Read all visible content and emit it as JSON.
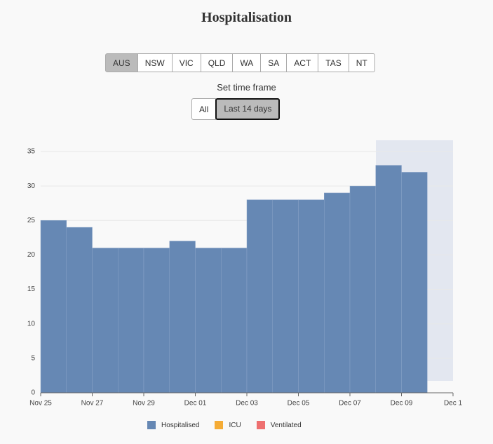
{
  "chart_data": {
    "type": "bar",
    "title": "Hospitalisation",
    "regions": [
      "AUS",
      "NSW",
      "VIC",
      "QLD",
      "WA",
      "SA",
      "ACT",
      "TAS",
      "NT"
    ],
    "selected_region": "AUS",
    "time_frame_label": "Set time frame",
    "time_frames": [
      "All",
      "Last 14 days"
    ],
    "selected_time_frame": "Last 14 days",
    "x": [
      0,
      1,
      2,
      3,
      4,
      5,
      6,
      7,
      8,
      9,
      10,
      11,
      12,
      13,
      14
    ],
    "xlim": [
      0,
      16
    ],
    "xticks": [
      {
        "value": 0,
        "label": "Nov 25"
      },
      {
        "value": 2,
        "label": "Nov 27"
      },
      {
        "value": 4,
        "label": "Nov 29"
      },
      {
        "value": 6,
        "label": "Dec 01"
      },
      {
        "value": 8,
        "label": "Dec 03"
      },
      {
        "value": 10,
        "label": "Dec 05"
      },
      {
        "value": 12,
        "label": "Dec 07"
      },
      {
        "value": 14,
        "label": "Dec 09"
      },
      {
        "value": 16,
        "label": "Dec 1"
      }
    ],
    "series": [
      {
        "name": "Hospitalised",
        "color": "#6688b4",
        "values": [
          25,
          24,
          21,
          21,
          21,
          22,
          21,
          21,
          28,
          28,
          28,
          29,
          30,
          33,
          32
        ]
      }
    ],
    "legend": [
      {
        "name": "Hospitalised",
        "color": "#6688b4"
      },
      {
        "name": "ICU",
        "color": "#f5ac36"
      },
      {
        "name": "Ventilated",
        "color": "#ee7070"
      }
    ],
    "ylim": [
      0,
      35
    ],
    "yticks": [
      0,
      5,
      10,
      15,
      20,
      25,
      30,
      35
    ],
    "grid": true
  }
}
